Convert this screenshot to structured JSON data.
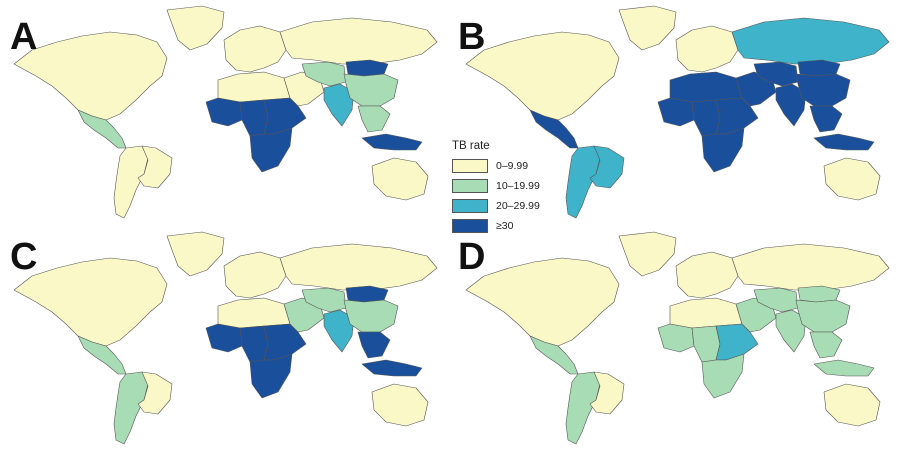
{
  "figure": {
    "panels": [
      {
        "letter": "A"
      },
      {
        "letter": "B"
      },
      {
        "letter": "C"
      },
      {
        "letter": "D"
      }
    ]
  },
  "legend": {
    "title": "TB rate",
    "items": [
      {
        "label": "0–9.99",
        "color": "#fbf8c8"
      },
      {
        "label": "10–19.99",
        "color": "#a8dcb4"
      },
      {
        "label": "20–29.99",
        "color": "#3fb3c9"
      },
      {
        "label": "≥30",
        "color": "#1a4f9c"
      }
    ]
  },
  "colors": {
    "land_default": "#fbf8c8",
    "ocean": "#ffffff",
    "border": "#555555"
  },
  "regions": {
    "A": {
      "north_america": 0,
      "central_america": 1,
      "south_america": 0,
      "brazil": 0,
      "greenland": 0,
      "europe": 0,
      "russia": 0,
      "north_africa": 0,
      "west_africa": 3,
      "central_africa": 3,
      "east_africa": 3,
      "southern_africa": 3,
      "middle_east": 0,
      "central_asia": 1,
      "south_asia": 2,
      "mongolia": 3,
      "china": 1,
      "southeast_asia": 1,
      "indonesia": 3,
      "australia": 0
    },
    "B": {
      "north_america": 0,
      "central_america": 3,
      "south_america": 2,
      "brazil": 2,
      "greenland": 0,
      "europe": 0,
      "russia": 2,
      "north_africa": 3,
      "west_africa": 3,
      "central_africa": 3,
      "east_africa": 3,
      "southern_africa": 3,
      "middle_east": 3,
      "central_asia": 3,
      "south_asia": 3,
      "mongolia": 3,
      "china": 3,
      "southeast_asia": 3,
      "indonesia": 3,
      "australia": 0
    },
    "C": {
      "north_america": 0,
      "central_america": 1,
      "south_america": 1,
      "brazil": 0,
      "greenland": 0,
      "europe": 0,
      "russia": 0,
      "north_africa": 0,
      "west_africa": 3,
      "central_africa": 3,
      "east_africa": 3,
      "southern_africa": 3,
      "middle_east": 1,
      "central_asia": 1,
      "south_asia": 2,
      "mongolia": 3,
      "china": 1,
      "southeast_asia": 3,
      "indonesia": 3,
      "australia": 0
    },
    "D": {
      "north_america": 0,
      "central_america": 1,
      "south_america": 1,
      "brazil": 0,
      "greenland": 0,
      "europe": 0,
      "russia": 0,
      "north_africa": 0,
      "west_africa": 1,
      "central_africa": 1,
      "east_africa": 2,
      "southern_africa": 1,
      "middle_east": 1,
      "central_asia": 1,
      "south_asia": 1,
      "mongolia": 1,
      "china": 1,
      "southeast_asia": 1,
      "indonesia": 1,
      "australia": 0
    }
  }
}
